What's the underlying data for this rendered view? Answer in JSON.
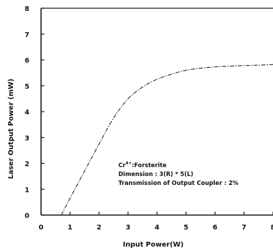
{
  "chart_data": {
    "type": "line",
    "title": "",
    "xlabel": "Input Power(W)",
    "ylabel": "Laser Output Power (mW)",
    "xlim": [
      0,
      8
    ],
    "ylim": [
      0,
      8
    ],
    "x_ticks": [
      0,
      1,
      2,
      3,
      4,
      5,
      6,
      7,
      8
    ],
    "y_ticks": [
      0,
      1,
      2,
      3,
      4,
      5,
      6,
      7,
      8
    ],
    "x_tick_labels": [
      "0",
      "1",
      "2",
      "3",
      "4",
      "5",
      "6",
      "7",
      "8"
    ],
    "y_tick_labels": [
      "0",
      "1",
      "2",
      "3",
      "4",
      "5",
      "6",
      "7",
      "8"
    ],
    "grid": false,
    "legend": "none",
    "line_style": "dash-dot",
    "line_color": "#222222",
    "series": [
      {
        "x": [
          0.7,
          1.0,
          1.5,
          2.0,
          2.5,
          3.0,
          3.5,
          4.0,
          4.5,
          5.0,
          5.5,
          6.0,
          6.5,
          7.0,
          7.5,
          8.0
        ],
        "y": [
          0.0,
          0.65,
          1.7,
          2.75,
          3.75,
          4.5,
          4.95,
          5.25,
          5.45,
          5.6,
          5.68,
          5.73,
          5.76,
          5.78,
          5.8,
          5.82
        ]
      }
    ],
    "annotations": {
      "line1_base": "Cr",
      "line1_sup": "4+",
      "line1_rest": ":Forsterite",
      "line2": "Dimension : 3(R) * 5(L)",
      "line3": "Transmission of Output Coupler : 2%"
    }
  }
}
